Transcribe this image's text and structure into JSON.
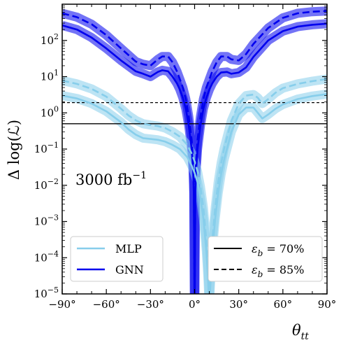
{
  "chart_data": {
    "type": "line",
    "xlabel": "θ_tt",
    "ylabel": "Δ log(ℒ)",
    "xlim": [
      -90,
      90
    ],
    "ylim_log10": [
      -5,
      3
    ],
    "yscale": "log",
    "x_ticks": [
      -90,
      -60,
      -30,
      0,
      30,
      60,
      90
    ],
    "x_tick_labels": [
      "−90°",
      "−60°",
      "−30°",
      "0°",
      "30°",
      "60°",
      "90°"
    ],
    "y_ticks_exp": [
      -5,
      -4,
      -3,
      -2,
      -1,
      0,
      1,
      2
    ],
    "y_tick_labels": [
      {
        "base": "10",
        "exp": "−5"
      },
      {
        "base": "10",
        "exp": "−4"
      },
      {
        "base": "10",
        "exp": "−3"
      },
      {
        "base": "10",
        "exp": "−2"
      },
      {
        "base": "10",
        "exp": "−1"
      },
      {
        "base": "10",
        "exp": "0"
      },
      {
        "base": "10",
        "exp": "1"
      },
      {
        "base": "10",
        "exp": "2"
      }
    ],
    "annotation": {
      "base": "3000 fb",
      "exp": "−1"
    },
    "reference_lines": [
      {
        "y": 0.5,
        "style": "solid"
      },
      {
        "y": 1.92,
        "style": "dashed"
      }
    ],
    "legend_models": [
      {
        "name": "MLP",
        "color": "#87ceeb"
      },
      {
        "name": "GNN",
        "color": "#0000ee"
      }
    ],
    "legend_eff": [
      {
        "label": "ε_b = 70%",
        "style": "solid"
      },
      {
        "label": "ε_b = 85%",
        "style": "dashed"
      }
    ],
    "series": [
      {
        "model": "GNN",
        "eff": "70%",
        "color": "#0000ee",
        "zero_x": 0,
        "x": [
          -90,
          -80,
          -70,
          -60,
          -50,
          -40,
          -35,
          -30,
          -25,
          -22,
          -18,
          -15,
          -12,
          -10,
          -8,
          -6,
          -4,
          -2,
          -1,
          -0.5,
          0.5,
          1,
          2,
          4,
          6,
          8,
          10,
          12,
          15,
          18,
          22,
          25,
          30,
          35,
          40,
          50,
          60,
          70,
          80,
          90
        ],
        "y": [
          260,
          200,
          120,
          60,
          28,
          14,
          12,
          10,
          13.5,
          15,
          14,
          10,
          6.5,
          4.4,
          2.6,
          1.3,
          0.45,
          0.1,
          0.025,
          0.006,
          0.006,
          0.025,
          0.1,
          0.45,
          1.3,
          2.6,
          4.4,
          6.5,
          10,
          13,
          13.5,
          12,
          13,
          18,
          35,
          100,
          180,
          240,
          270,
          290
        ]
      },
      {
        "model": "GNN",
        "eff": "85%",
        "color": "#0000ee",
        "zero_x": 0,
        "x": [
          -90,
          -80,
          -70,
          -60,
          -50,
          -40,
          -35,
          -30,
          -25,
          -22,
          -18,
          -15,
          -12,
          -10,
          -8,
          -6,
          -4,
          -2,
          -1,
          -0.5,
          0.5,
          1,
          2,
          4,
          6,
          8,
          10,
          12,
          15,
          18,
          22,
          25,
          30,
          35,
          40,
          50,
          60,
          70,
          80,
          90
        ],
        "y": [
          560,
          440,
          280,
          140,
          60,
          26,
          22,
          20,
          30,
          36,
          36,
          25,
          14,
          8.5,
          5,
          2.4,
          0.8,
          0.18,
          0.045,
          0.011,
          0.011,
          0.045,
          0.18,
          0.8,
          2.4,
          5,
          8.5,
          14,
          25,
          36,
          36,
          30,
          28,
          42,
          80,
          220,
          420,
          560,
          620,
          650
        ]
      },
      {
        "model": "MLP",
        "eff": "70%",
        "color": "#87ceeb",
        "zero_x": 10,
        "x": [
          -90,
          -80,
          -70,
          -60,
          -50,
          -45,
          -40,
          -35,
          -30,
          -25,
          -20,
          -15,
          -10,
          -5,
          -2,
          0,
          2,
          4,
          6,
          8,
          9,
          9.7,
          10.3,
          11,
          12,
          14,
          16,
          18,
          20,
          25,
          30,
          35,
          40,
          43,
          46,
          50,
          55,
          60,
          70,
          80,
          90
        ],
        "y": [
          3.0,
          2.5,
          1.8,
          1.1,
          0.55,
          0.35,
          0.25,
          0.2,
          0.19,
          0.18,
          0.16,
          0.13,
          0.1,
          0.06,
          0.035,
          0.022,
          0.012,
          0.0045,
          0.0012,
          0.00015,
          3e-05,
          8e-06,
          8e-06,
          3e-05,
          0.00015,
          0.0012,
          0.006,
          0.02,
          0.05,
          0.3,
          0.9,
          1.4,
          1.4,
          1.0,
          0.7,
          0.9,
          1.3,
          1.7,
          2.4,
          2.9,
          3.3
        ]
      },
      {
        "model": "MLP",
        "eff": "85%",
        "color": "#87ceeb",
        "zero_x": 10,
        "x": [
          -90,
          -80,
          -70,
          -60,
          -50,
          -45,
          -40,
          -35,
          -30,
          -25,
          -20,
          -15,
          -10,
          -5,
          -2,
          0,
          2,
          4,
          6,
          8,
          9,
          9.7,
          10.3,
          11,
          12,
          14,
          16,
          18,
          20,
          25,
          30,
          35,
          40,
          43,
          46,
          50,
          55,
          60,
          70,
          80,
          90
        ],
        "y": [
          7.8,
          6.3,
          4.6,
          2.8,
          1.3,
          0.85,
          0.62,
          0.5,
          0.46,
          0.43,
          0.38,
          0.3,
          0.22,
          0.13,
          0.075,
          0.046,
          0.024,
          0.009,
          0.0024,
          0.0003,
          6e-05,
          1.5e-05,
          1.5e-05,
          6e-05,
          0.0003,
          0.0024,
          0.012,
          0.04,
          0.1,
          0.6,
          1.8,
          3.0,
          3.2,
          2.6,
          1.8,
          2.4,
          3.6,
          4.8,
          6.3,
          7.5,
          8.6
        ]
      }
    ]
  }
}
